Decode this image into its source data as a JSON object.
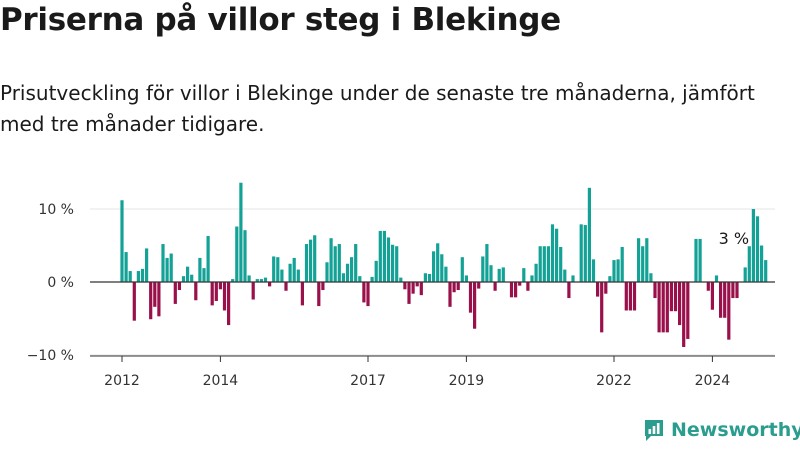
{
  "title": "Priserna på villor steg i Blekinge",
  "subtitle": "Prisutveckling för villor i Blekinge under de senaste tre månaderna, jämfört med tre månader tidigare.",
  "brand": "Newsworthy",
  "colors": {
    "positive": "#14a296",
    "negative": "#99104a",
    "zero_line": "#333333",
    "grid": "#e5e5e5",
    "brand": "#2a9d8f"
  },
  "chart_data": {
    "type": "bar",
    "title": "Priserna på villor steg i Blekinge",
    "xlabel": "",
    "ylabel": "",
    "ylim": [
      -10,
      14
    ],
    "grid": true,
    "y_ticks": [
      {
        "value": 10,
        "label": "10 %"
      },
      {
        "value": 0,
        "label": "0 %"
      },
      {
        "value": -10,
        "label": "−10 %"
      }
    ],
    "x_ticks": [
      {
        "date": "2012-01",
        "label": "2012"
      },
      {
        "date": "2014-01",
        "label": "2014"
      },
      {
        "date": "2017-01",
        "label": "2017"
      },
      {
        "date": "2019-01",
        "label": "2019"
      },
      {
        "date": "2022-01",
        "label": "2022"
      },
      {
        "date": "2024-01",
        "label": "2024"
      }
    ],
    "annotation": {
      "date": "2024-06",
      "value": 3,
      "label": "3 %"
    },
    "x_start": "2012-01",
    "values": [
      11.2,
      4.1,
      1.5,
      -5.3,
      1.5,
      1.8,
      4.6,
      -5.1,
      -3.4,
      -4.7,
      5.2,
      3.3,
      3.9,
      -3.0,
      -1.1,
      0.8,
      2.1,
      1.0,
      -2.5,
      3.3,
      1.9,
      6.3,
      -3.2,
      -2.6,
      -1.0,
      -3.9,
      -5.9,
      0.4,
      7.6,
      13.6,
      7.1,
      0.9,
      -2.4,
      0.4,
      0.4,
      0.6,
      -0.6,
      3.5,
      3.4,
      1.7,
      -1.2,
      2.5,
      3.3,
      1.7,
      -3.2,
      5.2,
      5.8,
      6.4,
      -3.3,
      -1.1,
      2.7,
      6.0,
      4.9,
      5.2,
      1.2,
      2.5,
      3.4,
      5.2,
      0.8,
      -2.8,
      -3.3,
      0.7,
      2.9,
      7.0,
      7.0,
      6.1,
      5.1,
      4.9,
      0.6,
      -1.0,
      -3.0,
      -1.6,
      -0.6,
      -1.8,
      1.2,
      1.1,
      4.2,
      5.3,
      3.8,
      2.1,
      -3.4,
      -1.4,
      -1.1,
      3.4,
      0.9,
      -4.2,
      -6.4,
      -0.9,
      3.5,
      5.2,
      2.3,
      -1.2,
      1.8,
      2.0,
      0.0,
      -2.1,
      -2.1,
      -0.5,
      1.9,
      -1.2,
      0.9,
      2.5,
      4.9,
      4.9,
      4.9,
      7.9,
      7.3,
      4.8,
      1.7,
      -2.2,
      0.9,
      0.0,
      7.9,
      7.8,
      12.9,
      3.1,
      -2.0,
      -6.9,
      -1.6,
      0.8,
      3.0,
      3.1,
      4.8,
      -3.9,
      -3.9,
      -3.9,
      6.0,
      4.9,
      6.0,
      1.2,
      -2.2,
      -6.9,
      -6.9,
      -6.9,
      -4.0,
      -4.0,
      -5.9,
      -8.9,
      -7.8,
      0.0,
      5.9,
      5.9,
      0.0,
      -1.2,
      -3.8,
      0.9,
      -4.9,
      -4.9,
      -7.9,
      -2.2,
      -2.2,
      0.0,
      2.0,
      4.9,
      10.0,
      9.0,
      5.0,
      3.0
    ]
  }
}
